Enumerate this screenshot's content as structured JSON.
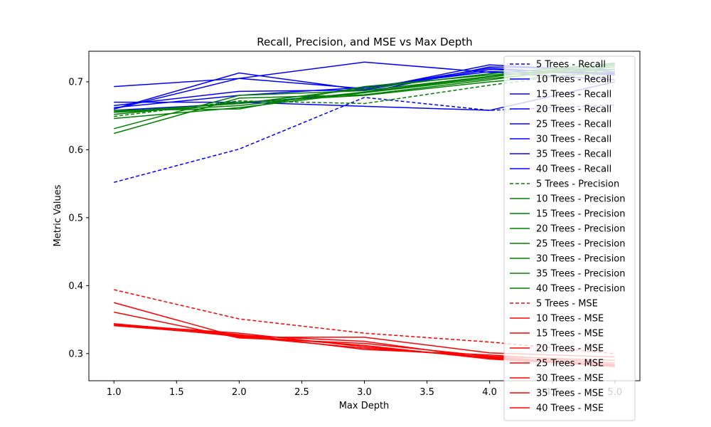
{
  "chart_data": {
    "type": "line",
    "title": "Recall, Precision, and MSE vs Max Depth",
    "xlabel": "Max Depth",
    "ylabel": "Metric Values",
    "xlim": [
      0.8,
      5.2
    ],
    "ylim": [
      0.26,
      0.745
    ],
    "xticks": [
      1.0,
      1.5,
      2.0,
      2.5,
      3.0,
      3.5,
      4.0,
      4.5,
      5.0
    ],
    "xtick_labels": [
      "1.0",
      "1.5",
      "2.0",
      "2.5",
      "3.0",
      "3.5",
      "4.0",
      "4.5",
      "5.0"
    ],
    "yticks": [
      0.3,
      0.4,
      0.5,
      0.6,
      0.7
    ],
    "ytick_labels": [
      "0.3",
      "0.4",
      "0.5",
      "0.6",
      "0.7"
    ],
    "grid": false,
    "legend_position": "top-right",
    "x": [
      1,
      2,
      3,
      4,
      5
    ],
    "series": [
      {
        "name": "5 Trees - Recall",
        "color": "#0000ff",
        "dashed": true,
        "values": [
          0.552,
          0.601,
          0.677,
          0.658,
          0.666
        ]
      },
      {
        "name": "10 Trees - Recall",
        "color": "#0000ff",
        "dashed": false,
        "values": [
          0.693,
          0.705,
          0.729,
          0.714,
          0.703
        ]
      },
      {
        "name": "15 Trees - Recall",
        "color": "#0000ff",
        "dashed": false,
        "values": [
          0.67,
          0.67,
          0.664,
          0.658,
          0.7
        ]
      },
      {
        "name": "20 Trees - Recall",
        "color": "#0000ff",
        "dashed": false,
        "values": [
          0.66,
          0.713,
          0.688,
          0.725,
          0.715
        ]
      },
      {
        "name": "25 Trees - Recall",
        "color": "#0000ff",
        "dashed": false,
        "values": [
          0.665,
          0.686,
          0.688,
          0.718,
          0.713
        ]
      },
      {
        "name": "30 Trees - Recall",
        "color": "#0000ff",
        "dashed": false,
        "values": [
          0.66,
          0.705,
          0.69,
          0.72,
          0.71
        ]
      },
      {
        "name": "35 Trees - Recall",
        "color": "#0000ff",
        "dashed": false,
        "values": [
          0.662,
          0.68,
          0.692,
          0.715,
          0.712
        ]
      },
      {
        "name": "40 Trees - Recall",
        "color": "#0000ff",
        "dashed": false,
        "values": [
          0.658,
          0.668,
          0.684,
          0.722,
          0.718
        ]
      },
      {
        "name": "5 Trees - Precision",
        "color": "#008000",
        "dashed": true,
        "values": [
          0.649,
          0.672,
          0.668,
          0.695,
          0.719
        ]
      },
      {
        "name": "10 Trees - Precision",
        "color": "#008000",
        "dashed": false,
        "values": [
          0.656,
          0.668,
          0.69,
          0.712,
          0.727
        ]
      },
      {
        "name": "15 Trees - Precision",
        "color": "#008000",
        "dashed": false,
        "values": [
          0.646,
          0.662,
          0.684,
          0.705,
          0.722
        ]
      },
      {
        "name": "20 Trees - Precision",
        "color": "#008000",
        "dashed": false,
        "values": [
          0.631,
          0.68,
          0.687,
          0.708,
          0.724
        ]
      },
      {
        "name": "25 Trees - Precision",
        "color": "#008000",
        "dashed": false,
        "values": [
          0.624,
          0.676,
          0.681,
          0.703,
          0.726
        ]
      },
      {
        "name": "30 Trees - Precision",
        "color": "#008000",
        "dashed": false,
        "values": [
          0.658,
          0.66,
          0.693,
          0.71,
          0.718
        ]
      },
      {
        "name": "35 Trees - Precision",
        "color": "#008000",
        "dashed": false,
        "values": [
          0.655,
          0.665,
          0.685,
          0.707,
          0.728
        ]
      },
      {
        "name": "40 Trees - Precision",
        "color": "#008000",
        "dashed": false,
        "values": [
          0.652,
          0.67,
          0.68,
          0.7,
          0.715
        ]
      },
      {
        "name": "5 Trees - MSE",
        "color": "#ff0000",
        "dashed": true,
        "values": [
          0.394,
          0.351,
          0.33,
          0.317,
          0.3
        ]
      },
      {
        "name": "10 Trees - MSE",
        "color": "#ff0000",
        "dashed": false,
        "values": [
          0.375,
          0.324,
          0.324,
          0.301,
          0.295
        ]
      },
      {
        "name": "15 Trees - MSE",
        "color": "#ff0000",
        "dashed": false,
        "values": [
          0.361,
          0.323,
          0.315,
          0.296,
          0.29
        ]
      },
      {
        "name": "20 Trees - MSE",
        "color": "#ff0000",
        "dashed": false,
        "values": [
          0.344,
          0.328,
          0.306,
          0.298,
          0.286
        ]
      },
      {
        "name": "25 Trees - MSE",
        "color": "#ff0000",
        "dashed": false,
        "values": [
          0.343,
          0.33,
          0.31,
          0.294,
          0.283
        ]
      },
      {
        "name": "30 Trees - MSE",
        "color": "#ff0000",
        "dashed": false,
        "values": [
          0.342,
          0.326,
          0.312,
          0.292,
          0.281
        ]
      },
      {
        "name": "35 Trees - MSE",
        "color": "#ff0000",
        "dashed": false,
        "values": [
          0.344,
          0.325,
          0.308,
          0.295,
          0.284
        ]
      },
      {
        "name": "40 Trees - MSE",
        "color": "#ff0000",
        "dashed": false,
        "values": [
          0.341,
          0.327,
          0.318,
          0.293,
          0.282
        ]
      }
    ]
  }
}
